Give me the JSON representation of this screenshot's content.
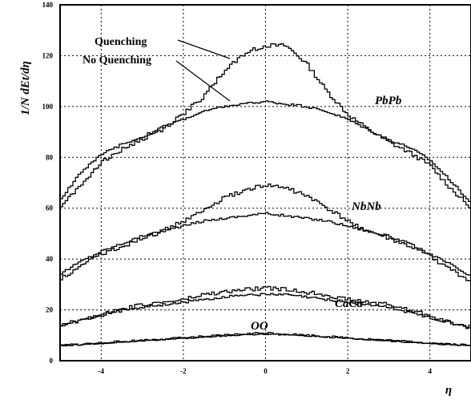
{
  "chart_data": {
    "type": "line",
    "xlabel": "η",
    "ylabel": "1/N dEt/dη",
    "xlim": [
      -5,
      5
    ],
    "ylim": [
      0,
      140
    ],
    "xticks": [
      -4,
      -2,
      0,
      2,
      4
    ],
    "xtick_labels": [
      "-4",
      "-2",
      "0",
      "2",
      "4"
    ],
    "yticks": [
      0,
      20,
      40,
      60,
      80,
      100,
      120,
      140
    ],
    "ytick_labels": [
      "0",
      "20",
      "40",
      "60",
      "80",
      "100",
      "120",
      "140"
    ],
    "grid": true,
    "legend": [
      "Quenching",
      "No Quenching"
    ],
    "annotations": [
      "PbPb",
      "NbNb",
      "CaCa",
      "OO"
    ],
    "series": [
      {
        "system": "PbPb",
        "variant": "Quenching",
        "x": [
          -5,
          -4.5,
          -4,
          -3.5,
          -3,
          -2.5,
          -2,
          -1.5,
          -1,
          -0.5,
          0,
          0.5,
          1,
          1.5,
          2,
          2.5,
          3,
          3.5,
          4,
          4.5,
          5
        ],
        "y": [
          60,
          69,
          78,
          83,
          87,
          91,
          97,
          104,
          114,
          121,
          124,
          124,
          117,
          106,
          97,
          91,
          86,
          82,
          77,
          68,
          60
        ]
      },
      {
        "system": "PbPb",
        "variant": "No Quenching",
        "x": [
          -5,
          -4.5,
          -4,
          -3.5,
          -3,
          -2.5,
          -2,
          -1.5,
          -1,
          -0.5,
          0,
          0.5,
          1,
          1.5,
          2,
          2.5,
          3,
          3.5,
          4,
          4.5,
          5
        ],
        "y": [
          63,
          74,
          81,
          85,
          88,
          92,
          95,
          98,
          100,
          101,
          102,
          101,
          100,
          98,
          95,
          91,
          87,
          84,
          79,
          71,
          62
        ]
      },
      {
        "system": "NbNb",
        "variant": "Quenching",
        "x": [
          -5,
          -4.5,
          -4,
          -3.5,
          -3,
          -2.5,
          -2,
          -1.5,
          -1,
          -0.5,
          0,
          0.5,
          1,
          1.5,
          2,
          2.5,
          3,
          3.5,
          4,
          4.5,
          5
        ],
        "y": [
          32,
          37,
          42,
          45,
          48,
          51,
          55,
          59,
          64,
          67,
          69,
          68,
          65,
          60,
          55,
          51,
          48,
          45,
          41,
          36,
          31
        ]
      },
      {
        "system": "NbNb",
        "variant": "No Quenching",
        "x": [
          -5,
          -4.5,
          -4,
          -3.5,
          -3,
          -2.5,
          -2,
          -1.5,
          -1,
          -0.5,
          0,
          0.5,
          1,
          1.5,
          2,
          2.5,
          3,
          3.5,
          4,
          4.5,
          5
        ],
        "y": [
          34,
          39,
          43,
          46,
          49,
          51,
          53,
          55,
          56,
          57,
          58,
          57,
          56,
          55,
          53,
          51,
          49,
          46,
          42,
          38,
          33
        ]
      },
      {
        "system": "CaCa",
        "variant": "Quenching",
        "x": [
          -5,
          -4.5,
          -4,
          -3.5,
          -3,
          -2.5,
          -2,
          -1.5,
          -1,
          -0.5,
          0,
          0.5,
          1,
          1.5,
          2,
          2.5,
          3,
          3.5,
          4,
          4.5,
          5
        ],
        "y": [
          14,
          16,
          18,
          20,
          22,
          23,
          24,
          26,
          27,
          28,
          28.5,
          28,
          27,
          26,
          24,
          23,
          22,
          20,
          18,
          15,
          13
        ]
      },
      {
        "system": "CaCa",
        "variant": "No Quenching",
        "x": [
          -5,
          -4.5,
          -4,
          -3.5,
          -3,
          -2.5,
          -2,
          -1.5,
          -1,
          -0.5,
          0,
          0.5,
          1,
          1.5,
          2,
          2.5,
          3,
          3.5,
          4,
          4.5,
          5
        ],
        "y": [
          14,
          16,
          18,
          20,
          21,
          22,
          23,
          24,
          25,
          26,
          26,
          26,
          25,
          24,
          23,
          22,
          21,
          19,
          17,
          15,
          13
        ]
      },
      {
        "system": "OO",
        "variant": "Quenching",
        "x": [
          -5,
          -4.5,
          -4,
          -3.5,
          -3,
          -2.5,
          -2,
          -1.5,
          -1,
          -0.5,
          0,
          0.5,
          1,
          1.5,
          2,
          2.5,
          3,
          3.5,
          4,
          4.5,
          5
        ],
        "y": [
          6,
          6.5,
          7,
          7.5,
          8,
          8.5,
          9,
          9.5,
          10,
          10.5,
          11,
          10.5,
          10,
          9.5,
          9,
          8.5,
          8,
          7.5,
          7,
          6.5,
          6
        ]
      },
      {
        "system": "OO",
        "variant": "No Quenching",
        "x": [
          -5,
          -4.5,
          -4,
          -3.5,
          -3,
          -2.5,
          -2,
          -1.5,
          -1,
          -0.5,
          0,
          0.5,
          1,
          1.5,
          2,
          2.5,
          3,
          3.5,
          4,
          4.5,
          5
        ],
        "y": [
          5.8,
          6.3,
          6.8,
          7.3,
          7.8,
          8.3,
          8.8,
          9.3,
          9.8,
          10.2,
          10.5,
          10.2,
          9.8,
          9.3,
          8.8,
          8.3,
          7.8,
          7.3,
          6.8,
          6.3,
          5.8
        ]
      }
    ]
  }
}
